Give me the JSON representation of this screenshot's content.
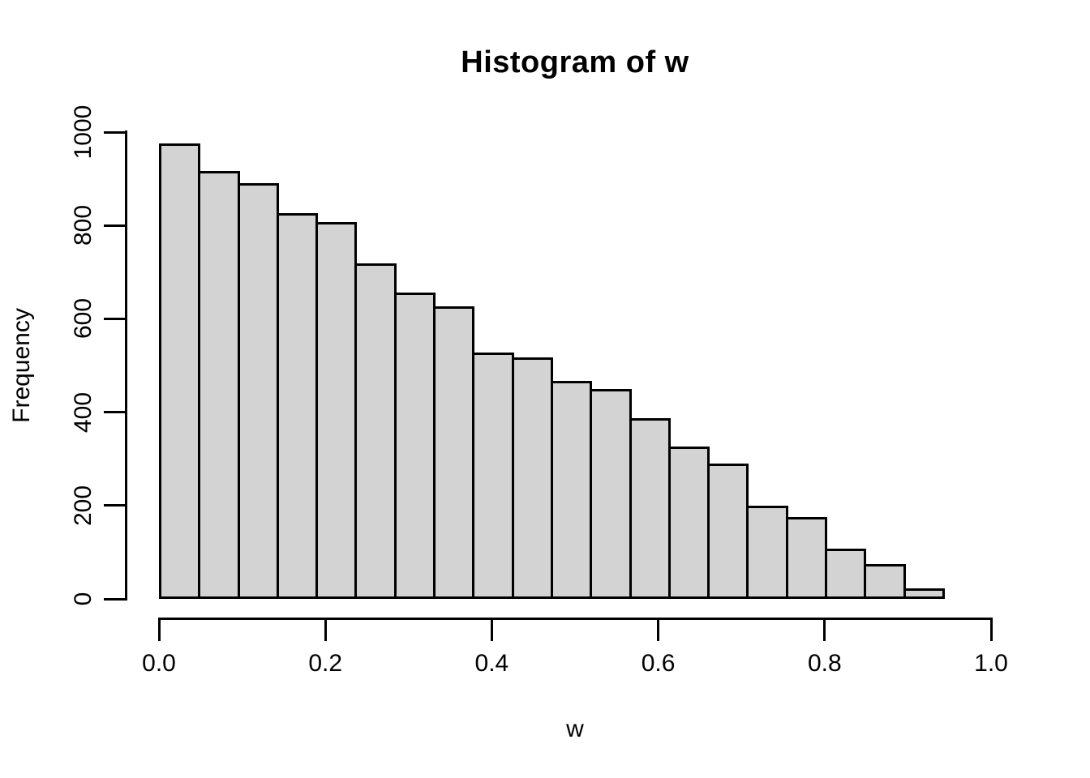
{
  "figure": {
    "title": "Histogram of w",
    "x_axis": {
      "label": "w",
      "tick_labels": [
        "0.0",
        "0.2",
        "0.4",
        "0.6",
        "0.8",
        "1.0"
      ]
    },
    "y_axis": {
      "label": "Frequency",
      "tick_labels": [
        "0",
        "200",
        "400",
        "600",
        "800",
        "1000"
      ]
    },
    "colors": {
      "background": "#ffffff",
      "bar_fill": "#d3d3d3",
      "bar_border": "#000000",
      "axis": "#000000",
      "text": "#000000"
    }
  },
  "chart_data": {
    "type": "bar",
    "chart_style": "histogram",
    "title": "Histogram of w",
    "xlabel": "w",
    "ylabel": "Frequency",
    "bin_edges": [
      0.0,
      0.05,
      0.1,
      0.15,
      0.2,
      0.25,
      0.3,
      0.35,
      0.4,
      0.45,
      0.5,
      0.55,
      0.6,
      0.65,
      0.7,
      0.75,
      0.8,
      0.85,
      0.9,
      0.95,
      1.0
    ],
    "values": [
      975,
      916,
      890,
      826,
      807,
      719,
      657,
      627,
      527,
      517,
      467,
      450,
      388,
      327,
      290,
      200,
      176,
      108,
      75,
      22
    ],
    "xlim": [
      0,
      1
    ],
    "ylim": [
      0,
      1000
    ],
    "xticks": [
      0,
      0.2,
      0.4,
      0.6,
      0.8,
      1.0
    ],
    "yticks": [
      0,
      200,
      400,
      600,
      800,
      1000
    ],
    "grid": false,
    "legend": false,
    "bar_gap": 0
  }
}
